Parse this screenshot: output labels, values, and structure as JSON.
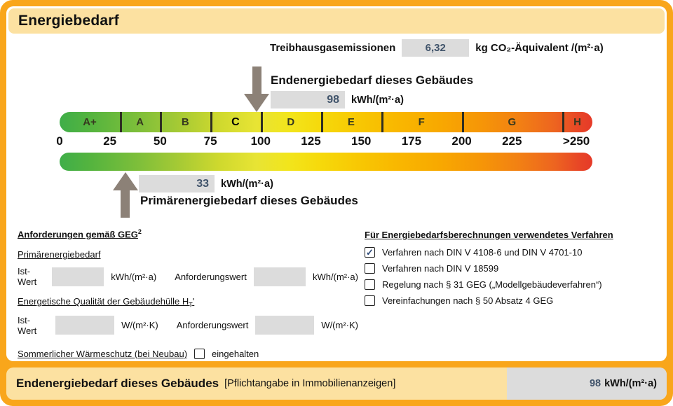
{
  "title": "Energiebedarf",
  "colors": {
    "frame_orange": "#F9A61B",
    "panel_yellow": "#FCE1A1",
    "field_gray": "#DCDCDC",
    "value_text": "#41546B",
    "arrow_gray": "#8C8177"
  },
  "ghg": {
    "label": "Treibhausgasemissionen",
    "value": "6,32",
    "unit": "kg CO₂-Äquivalent /(m²·a)"
  },
  "end_energy": {
    "heading": "Endenergiebedarf dieses Gebäudes",
    "value": "98",
    "unit": "kWh/(m²·a)"
  },
  "primary_energy": {
    "heading": "Primärenergiebedarf dieses Gebäudes",
    "value": "33",
    "unit": "kWh/(m²·a)"
  },
  "scale": {
    "range": [
      0,
      265
    ],
    "classes": [
      {
        "label": "A+",
        "from": 0,
        "to": 30
      },
      {
        "label": "A",
        "from": 30,
        "to": 50
      },
      {
        "label": "B",
        "from": 50,
        "to": 75
      },
      {
        "label": "C",
        "from": 75,
        "to": 100,
        "highlight": true
      },
      {
        "label": "D",
        "from": 100,
        "to": 130
      },
      {
        "label": "E",
        "from": 130,
        "to": 160
      },
      {
        "label": "F",
        "from": 160,
        "to": 200
      },
      {
        "label": "G",
        "from": 200,
        "to": 250
      },
      {
        "label": "H",
        "from": 250,
        "to": 265
      }
    ],
    "tick_labels": [
      {
        "text": "0",
        "u": 0
      },
      {
        "text": "25",
        "u": 25
      },
      {
        "text": "50",
        "u": 50
      },
      {
        "text": "75",
        "u": 75
      },
      {
        "text": "100",
        "u": 100
      },
      {
        "text": "125",
        "u": 125
      },
      {
        "text": "150",
        "u": 150
      },
      {
        "text": "175",
        "u": 175
      },
      {
        "text": "200",
        "u": 200
      },
      {
        "text": "225",
        "u": 225
      },
      {
        "text": ">250",
        "u": 257
      }
    ],
    "gradient": [
      [
        "#3FAE49",
        0
      ],
      [
        "#55B43E",
        6
      ],
      [
        "#7FBF3A",
        15
      ],
      [
        "#A9CB34",
        23
      ],
      [
        "#CFD92E",
        30
      ],
      [
        "#E8E434",
        37
      ],
      [
        "#F2E51C",
        43
      ],
      [
        "#F6D90B",
        49
      ],
      [
        "#F8C803",
        56
      ],
      [
        "#F9B800",
        63
      ],
      [
        "#F8A900",
        71
      ],
      [
        "#F69607",
        79
      ],
      [
        "#F28113",
        86
      ],
      [
        "#ED6420",
        93
      ],
      [
        "#E74327",
        98
      ],
      [
        "#E63A28",
        100
      ]
    ]
  },
  "requirements": {
    "heading": "Anforderungen gemäß GEG",
    "heading_sup": "2",
    "ist_label": "Ist-Wert",
    "anf_label": "Anforderungswert",
    "primary": {
      "heading": "Primärenergiebedarf",
      "unit": "kWh/(m²·a)"
    },
    "envelope": {
      "heading": "Energetische Qualität der Gebäudehülle H",
      "heading_sub": "T",
      "heading_prime": "'",
      "unit": "W/(m²·K)"
    },
    "summer": {
      "label": "Sommerlicher Wärmeschutz (bei Neubau)",
      "option": "eingehalten",
      "checked": false
    }
  },
  "methods": {
    "heading": "Für Energiebedarfsberechnungen verwendetes Verfahren",
    "items": [
      {
        "checked": true,
        "label": "Verfahren nach DIN V 4108-6 und DIN V 4701-10"
      },
      {
        "checked": false,
        "label": "Verfahren nach DIN V 18599"
      },
      {
        "checked": false,
        "label": "Regelung nach § 31 GEG („Modellgebäudeverfahren“)"
      },
      {
        "checked": false,
        "label": "Vereinfachungen nach § 50 Absatz 4 GEG"
      }
    ]
  },
  "footer": {
    "heading": "Endenergiebedarf dieses Gebäudes",
    "note": "[Pflichtangabe in Immobilienanzeigen]",
    "value": "98",
    "unit": "kWh/(m²·a)"
  }
}
